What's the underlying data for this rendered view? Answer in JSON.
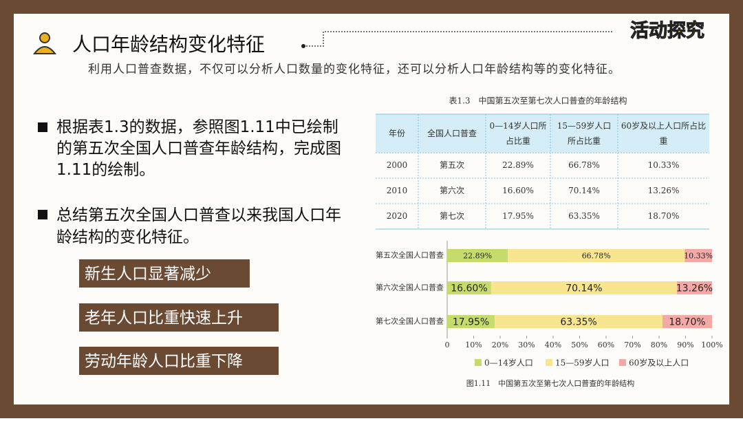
{
  "header": {
    "title": "人口年龄结构变化特征",
    "badge": "活动探究"
  },
  "intro": "利用人口普查数据，不仅可以分析人口数量的变化特征，还可以分析人口年龄结构等的变化特征。",
  "bullets": [
    "根据表1.3的数据，参照图1.11中已绘制的第五次全国人口普查年龄结构，完成图1.11的绘制。",
    "总结第五次全国人口普查以来我国人口年龄结构的变化特征。"
  ],
  "answers": [
    "新生人口显著减少",
    "老年人口比重快速上升",
    "劳动年龄人口比重下降"
  ],
  "table": {
    "caption": "表1.3　中国第五次至第七次人口普查的年龄结构",
    "header": [
      "年份",
      "全国人口普查",
      "0—14岁人口所占比重",
      "15—59岁人口所占比重",
      "60岁及以上人口所占比重"
    ],
    "rows": [
      [
        "2000",
        "第五次",
        "22.89%",
        "66.78%",
        "10.33%"
      ],
      [
        "2010",
        "第六次",
        "16.60%",
        "70.14%",
        "13.26%"
      ],
      [
        "2020",
        "第七次",
        "17.95%",
        "63.35%",
        "18.70%"
      ]
    ]
  },
  "chart_data": {
    "type": "bar",
    "orientation": "horizontal",
    "stacked": true,
    "caption": "图1.11　中国第五次至第七次人口普查的年龄结构",
    "categories": [
      "第五次全国人口普查",
      "第六次全国人口普查",
      "第七次全国人口普查"
    ],
    "series": [
      {
        "name": "0—14岁人口",
        "color": "#c6db6c",
        "values": [
          22.89,
          16.6,
          17.95
        ],
        "value_labels": [
          "22.89%",
          "16.60%",
          "17.95%"
        ]
      },
      {
        "name": "15—59岁人口",
        "color": "#f7e68f",
        "values": [
          66.78,
          70.14,
          63.35
        ],
        "value_labels": [
          "66.78%",
          "70.14%",
          "63.35%"
        ]
      },
      {
        "name": "60岁及以上人口",
        "color": "#f4a9a6",
        "values": [
          10.33,
          13.26,
          18.7
        ],
        "value_labels": [
          "10.33%",
          "13.26%",
          "18.70%"
        ]
      }
    ],
    "xlim": [
      0,
      100
    ],
    "xticks": [
      0,
      {
        "value": 10,
        "label": "10%"
      },
      {
        "value": 20,
        "label": "20%"
      },
      {
        "value": 30,
        "label": "30%"
      },
      {
        "value": 40,
        "label": "40%"
      },
      {
        "value": 50,
        "label": "50%"
      },
      {
        "value": 60,
        "label": "60%"
      },
      {
        "value": 70,
        "label": "70%"
      },
      {
        "value": 80,
        "label": "80%"
      },
      {
        "value": 90,
        "label": "90%"
      },
      {
        "value": 100,
        "label": "100%"
      }
    ],
    "legend": "bottom"
  }
}
